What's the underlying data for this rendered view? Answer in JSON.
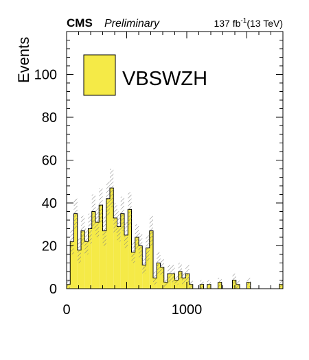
{
  "header": {
    "experiment": "CMS",
    "status": "Preliminary",
    "lumi_value": "137 fb",
    "lumi_exp": "-1",
    "energy": "(13 TeV)"
  },
  "chart_data": {
    "type": "bar",
    "histtype": "step-filled",
    "ylabel": "Events",
    "xlabel": "",
    "xlim": [
      0,
      1800
    ],
    "ylim": [
      0,
      120
    ],
    "bin_width": 30,
    "x_ticks": [
      0,
      1000
    ],
    "y_ticks": [
      0,
      20,
      40,
      60,
      80,
      100
    ],
    "legend": {
      "label": "VBSWZH",
      "placement": "top-left"
    },
    "colors": {
      "fill": "#f5ea47",
      "edge": "#000000",
      "uncertainty": "#7a7a7a"
    },
    "uncertainty": "hatched band on each bin",
    "series": [
      {
        "name": "VBSWZH",
        "bin_edges": [
          0,
          30,
          60,
          90,
          120,
          150,
          180,
          210,
          240,
          270,
          300,
          330,
          360,
          390,
          420,
          450,
          480,
          510,
          540,
          570,
          600,
          630,
          660,
          690,
          720,
          750,
          780,
          810,
          840,
          870,
          900,
          930,
          960,
          990,
          1020,
          1050,
          1080,
          1110,
          1140,
          1170,
          1200,
          1230,
          1260,
          1290,
          1320,
          1350,
          1380,
          1410,
          1440,
          1470,
          1500,
          1530,
          1560,
          1590,
          1620,
          1650,
          1680,
          1710,
          1740,
          1770,
          1800
        ],
        "values": [
          2,
          22,
          35,
          18,
          27,
          22,
          28,
          36,
          31,
          39,
          27,
          42,
          47,
          33,
          29,
          35,
          25,
          37,
          17,
          24,
          20,
          11,
          19,
          27,
          5,
          12,
          10,
          3,
          7,
          7,
          4,
          8,
          5,
          7,
          2,
          0,
          0,
          2,
          0,
          2,
          0,
          0,
          3,
          0,
          0,
          0,
          4,
          2,
          0,
          0,
          3,
          0,
          0,
          0,
          0,
          0,
          0,
          0,
          0,
          2
        ],
        "uncertainties": [
          2,
          6,
          7,
          6,
          7,
          6,
          7,
          8,
          7,
          8,
          7,
          8,
          9,
          7,
          7,
          8,
          6,
          8,
          5,
          6,
          6,
          4,
          6,
          7,
          3,
          5,
          4,
          2,
          4,
          4,
          2,
          4,
          3,
          4,
          2,
          0,
          0,
          2,
          0,
          2,
          0,
          0,
          2,
          0,
          0,
          0,
          3,
          2,
          0,
          0,
          2,
          0,
          0,
          0,
          0,
          0,
          0,
          0,
          0,
          2
        ]
      }
    ]
  }
}
